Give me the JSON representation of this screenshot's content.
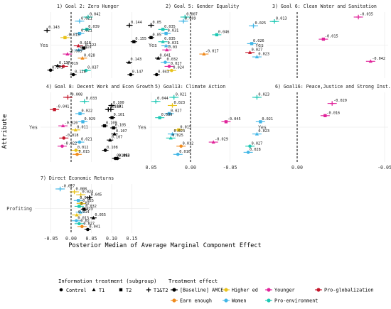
{
  "figure": {
    "ylabel": "Attribute",
    "xlabel": "Posterior Median of Average Marginal Component Effect"
  },
  "chart_data": {
    "type": "scatter",
    "xlim": [
      -0.07,
      0.165
    ],
    "x_ticks": [
      -0.05,
      0.0,
      0.05,
      0.1,
      0.15
    ],
    "x_tick_labels": [
      "-0.05",
      "0.00",
      "0.05",
      "0.10",
      "0.15"
    ],
    "reference_line": 0,
    "legends": {
      "shape_title": "Information treatment (subgroup)",
      "shape_items": [
        {
          "label": "Control",
          "shape": "circle"
        },
        {
          "label": "T1",
          "shape": "triangle"
        },
        {
          "label": "T2",
          "shape": "square"
        },
        {
          "label": "T1&T2",
          "shape": "plus"
        }
      ],
      "color_title": "Treatment effect",
      "color_items": [
        {
          "label": "[Baseline] AMCE",
          "color": "#000000"
        },
        {
          "label": "Higher ed",
          "color": "#e8c21a"
        },
        {
          "label": "Younger",
          "color": "#e0249a"
        },
        {
          "label": "Pro-globalization",
          "color": "#c4162a"
        },
        {
          "label": "Earn enough",
          "color": "#f08a1c"
        },
        {
          "label": "Women",
          "color": "#41b6e6"
        },
        {
          "label": "Pro-environment",
          "color": "#1ec8b4"
        }
      ]
    },
    "panels": [
      {
        "title": "1) Goal 2: Zero Hunger",
        "y_label": "Yes",
        "points": [
          {
            "v": 0.042,
            "label": "0.042",
            "color": "#1ec8b4",
            "shape": "plus"
          },
          {
            "v": 0.021,
            "label": "0.021",
            "color": "#41b6e6",
            "shape": "plus"
          },
          {
            "v": 0.144,
            "label": "0.144",
            "color": "#000000",
            "shape": "plus"
          },
          {
            "v": 0.039,
            "label": "0.039",
            "color": "#1ec8b4",
            "shape": "square"
          },
          {
            "v": 0.021,
            "label": "0.021",
            "color": "#41b6e6",
            "shape": "square"
          },
          {
            "v": -0.015,
            "label": "-0.015",
            "color": "#e8c21a",
            "shape": "square"
          },
          {
            "v": 0.155,
            "label": "0.155",
            "color": "#000000",
            "shape": "square"
          },
          {
            "v": 0.018,
            "label": "0.018",
            "color": "#c4162a",
            "shape": "triangle"
          },
          {
            "v": 0.019,
            "label": "0.019",
            "color": "#41b6e6",
            "shape": "triangle"
          },
          {
            "v": -0.009,
            "label": "-0.009",
            "color": "#e0249a",
            "shape": "triangle"
          },
          {
            "v": 0.028,
            "label": "0.028",
            "color": "#f08a1c",
            "shape": "triangle"
          },
          {
            "v": 0.143,
            "label": "0.143",
            "color": "#000000",
            "shape": "triangle"
          },
          {
            "v": -0.019,
            "label": "-0.019",
            "color": "#c4162a",
            "shape": "circle"
          },
          {
            "v": 0.037,
            "label": "0.037",
            "color": "#1ec8b4",
            "shape": "circle"
          },
          {
            "v": 0.147,
            "label": "0.147",
            "color": "#000000",
            "shape": "circle"
          }
        ]
      },
      {
        "title": "2) Goal 5: Gender Equality",
        "y_label": "Yes",
        "points": [
          {
            "v": 0.007,
            "label": "0.007",
            "color": "#1ec8b4",
            "shape": "plus"
          },
          {
            "v": 0.009,
            "label": "0.009",
            "color": "#41b6e6",
            "shape": "plus"
          },
          {
            "v": 0.05,
            "label": "0.05",
            "color": "#000000",
            "shape": "plus"
          },
          {
            "v": 0.035,
            "label": "0.035",
            "color": "#1ec8b4",
            "shape": "square"
          },
          {
            "v": 0.031,
            "label": "0.031",
            "color": "#41b6e6",
            "shape": "square"
          },
          {
            "v": 0.05,
            "label": "0.05",
            "color": "#000000",
            "shape": "square"
          },
          {
            "v": 0.035,
            "label": "0.035",
            "color": "#1ec8b4",
            "shape": "triangle"
          },
          {
            "v": 0.031,
            "label": "0.031",
            "color": "#41b6e6",
            "shape": "triangle"
          },
          {
            "v": 0.03,
            "label": "0.03",
            "color": "#e0249a",
            "shape": "triangle"
          },
          {
            "v": -0.017,
            "label": "-0.017",
            "color": "#f08a1c",
            "shape": "triangle"
          },
          {
            "v": 0.041,
            "label": "0.041",
            "color": "#000000",
            "shape": "triangle"
          },
          {
            "v": 0.032,
            "label": "0.032",
            "color": "#41b6e6",
            "shape": "circle"
          },
          {
            "v": 0.027,
            "label": "0.027",
            "color": "#e0249a",
            "shape": "circle"
          },
          {
            "v": 0.024,
            "label": "0.024",
            "color": "#e8c21a",
            "shape": "circle"
          },
          {
            "v": 0.043,
            "label": "0.043",
            "color": "#000000",
            "shape": "circle"
          }
        ]
      },
      {
        "title": "3) Goal 6: Clean Water and Sanitation",
        "y_label": "Yes",
        "points": [
          {
            "v": -0.035,
            "label": "-0.035",
            "color": "#e0249a",
            "shape": "plus"
          },
          {
            "v": 0.013,
            "label": "0.013",
            "color": "#1ec8b4",
            "shape": "plus"
          },
          {
            "v": 0.025,
            "label": "0.025",
            "color": "#41b6e6",
            "shape": "plus"
          },
          {
            "v": 0.143,
            "label": "0.143",
            "color": "#000000",
            "shape": "plus"
          },
          {
            "v": 0.046,
            "label": "0.046",
            "color": "#1ec8b4",
            "shape": "square"
          },
          {
            "v": -0.015,
            "label": "-0.015",
            "color": "#e0249a",
            "shape": "square"
          },
          {
            "v": 0.026,
            "label": "0.026",
            "color": "#41b6e6",
            "shape": "square"
          },
          {
            "v": 0.122,
            "label": "0.122",
            "color": "#000000",
            "shape": "square"
          },
          {
            "v": 0.027,
            "label": "0.027",
            "color": "#c4162a",
            "shape": "triangle"
          },
          {
            "v": 0.023,
            "label": "0.023",
            "color": "#41b6e6",
            "shape": "triangle"
          },
          {
            "v": -0.042,
            "label": "-0.042",
            "color": "#e0249a",
            "shape": "triangle"
          },
          {
            "v": 0.137,
            "label": "0.137",
            "color": "#000000",
            "shape": "triangle"
          },
          {
            "v": 0.141,
            "label": "0.141",
            "color": "#000000",
            "shape": "circle"
          },
          {
            "v": 0.128,
            "label": "0.128",
            "color": "#000000",
            "shape": "circle"
          }
        ]
      },
      {
        "title": "4) Goal 8: Decent Work and Econ Growth",
        "y_label": "Yes",
        "points": [
          {
            "v": -0.008,
            "label": "-0.008",
            "color": "#c4162a",
            "shape": "plus"
          },
          {
            "v": 0.033,
            "label": "0.033",
            "color": "#1ec8b4",
            "shape": "plus"
          },
          {
            "v": 0.1,
            "label": "0.100",
            "color": "#000000",
            "shape": "plus"
          },
          {
            "v": -0.041,
            "label": "-0.041",
            "color": "#c4162a",
            "shape": "square"
          },
          {
            "v": 0.022,
            "label": "0.022",
            "color": "#41b6e6",
            "shape": "square"
          },
          {
            "v": 0.101,
            "label": "0.101",
            "color": "#000000",
            "shape": "square"
          },
          {
            "v": 0.029,
            "label": "0.029",
            "color": "#41b6e6",
            "shape": "square"
          },
          {
            "v": -0.02,
            "label": "-0.020",
            "color": "#e0249a",
            "shape": "triangle"
          },
          {
            "v": 0.011,
            "label": "0.011",
            "color": "#e8c21a",
            "shape": "triangle"
          },
          {
            "v": 0.107,
            "label": "0.107",
            "color": "#000000",
            "shape": "triangle"
          },
          {
            "v": -0.018,
            "label": "-0.018",
            "color": "#c4162a",
            "shape": "circle"
          },
          {
            "v": 0.021,
            "label": "0.021",
            "color": "#41b6e6",
            "shape": "circle"
          },
          {
            "v": -0.022,
            "label": "-0.022",
            "color": "#e0249a",
            "shape": "circle"
          },
          {
            "v": 0.012,
            "label": "0.012",
            "color": "#e8c21a",
            "shape": "circle"
          },
          {
            "v": 0.015,
            "label": "0.015",
            "color": "#f08a1c",
            "shape": "circle"
          },
          {
            "v": 0.114,
            "label": "0.114",
            "color": "#000000",
            "shape": "circle"
          }
        ]
      },
      {
        "title": "5) Goal13: Climate Action",
        "y_label": "Yes",
        "points": [
          {
            "v": 0.021,
            "label": "0.021",
            "color": "#1ec8b4",
            "shape": "plus"
          },
          {
            "v": 0.044,
            "label": "0.044",
            "color": "#1ec8b4",
            "shape": "plus"
          },
          {
            "v": 0.023,
            "label": "0.023",
            "color": "#e8c21a",
            "shape": "plus"
          },
          {
            "v": 0.101,
            "label": "0.101",
            "color": "#000000",
            "shape": "plus"
          },
          {
            "v": 0.027,
            "label": "0.027",
            "color": "#41b6e6",
            "shape": "square"
          },
          {
            "v": 0.039,
            "label": "0.039",
            "color": "#1ec8b4",
            "shape": "square"
          },
          {
            "v": -0.045,
            "label": "-0.045",
            "color": "#e0249a",
            "shape": "square"
          },
          {
            "v": 0.109,
            "label": "0.109",
            "color": "#000000",
            "shape": "square"
          },
          {
            "v": 0.015,
            "label": "0.015",
            "color": "#e8c21a",
            "shape": "square"
          },
          {
            "v": 0.023,
            "label": "0.023",
            "color": "#41b6e6",
            "shape": "triangle"
          },
          {
            "v": 0.025,
            "label": "0.025",
            "color": "#1ec8b4",
            "shape": "triangle"
          },
          {
            "v": -0.029,
            "label": "-0.029",
            "color": "#e0249a",
            "shape": "triangle"
          },
          {
            "v": 0.012,
            "label": "0.012",
            "color": "#f08a1c",
            "shape": "circle"
          },
          {
            "v": 0.108,
            "label": "0.108",
            "color": "#000000",
            "shape": "circle"
          },
          {
            "v": 0.016,
            "label": "0.016",
            "color": "#41b6e6",
            "shape": "circle"
          },
          {
            "v": 0.093,
            "label": "0.093",
            "color": "#000000",
            "shape": "circle"
          }
        ]
      },
      {
        "title": "6) Goal16: Peace,Justice and Strong Inst.",
        "y_label": "Yes",
        "points": [
          {
            "v": 0.023,
            "label": "0.023",
            "color": "#1ec8b4",
            "shape": "plus"
          },
          {
            "v": -0.02,
            "label": "-0.020",
            "color": "#e0249a",
            "shape": "plus"
          },
          {
            "v": 0.108,
            "label": "0.108",
            "color": "#000000",
            "shape": "plus"
          },
          {
            "v": -0.016,
            "label": "-0.016",
            "color": "#e0249a",
            "shape": "square"
          },
          {
            "v": 0.021,
            "label": "0.021",
            "color": "#41b6e6",
            "shape": "square"
          },
          {
            "v": 0.105,
            "label": "0.105",
            "color": "#000000",
            "shape": "square"
          },
          {
            "v": 0.023,
            "label": "0.023",
            "color": "#41b6e6",
            "shape": "triangle"
          },
          {
            "v": 0.107,
            "label": "0.107",
            "color": "#000000",
            "shape": "triangle"
          },
          {
            "v": 0.027,
            "label": "0.027",
            "color": "#1ec8b4",
            "shape": "circle"
          },
          {
            "v": 0.028,
            "label": "0.028",
            "color": "#41b6e6",
            "shape": "circle"
          },
          {
            "v": 0.104,
            "label": "0.104",
            "color": "#000000",
            "shape": "circle"
          }
        ]
      },
      {
        "title": "7) Direct Economic Returns",
        "y_label": "Profiting",
        "points": [
          {
            "v": -0.027,
            "label": "-0.027",
            "color": "#41b6e6",
            "shape": "plus"
          },
          {
            "v": 0.008,
            "label": "0.008",
            "color": "#e8c21a",
            "shape": "plus"
          },
          {
            "v": 0.024,
            "label": "0.024",
            "color": "#e8c21a",
            "shape": "plus"
          },
          {
            "v": 0.045,
            "label": "0.045",
            "color": "#000000",
            "shape": "plus"
          },
          {
            "v": 0.018,
            "label": "0.018",
            "color": "#41b6e6",
            "shape": "square"
          },
          {
            "v": 0.025,
            "label": "0.025",
            "color": "#e8c21a",
            "shape": "square"
          },
          {
            "v": 0.02,
            "label": "0.02",
            "color": "#1ec8b4",
            "shape": "square"
          },
          {
            "v": 0.032,
            "label": "0.032",
            "color": "#000000",
            "shape": "square"
          },
          {
            "v": 0.023,
            "label": "0.023",
            "color": "#41b6e6",
            "shape": "triangle"
          },
          {
            "v": 0.014,
            "label": "0.014",
            "color": "#e8c21a",
            "shape": "triangle"
          },
          {
            "v": 0.055,
            "label": "0.055",
            "color": "#000000",
            "shape": "triangle"
          },
          {
            "v": 0.013,
            "label": "0.013",
            "color": "#41b6e6",
            "shape": "circle"
          },
          {
            "v": 0.02,
            "label": "0.02",
            "color": "#1ec8b4",
            "shape": "circle"
          },
          {
            "v": 0.027,
            "label": "0.027",
            "color": "#f08a1c",
            "shape": "circle"
          },
          {
            "v": 0.041,
            "label": "0.041",
            "color": "#000000",
            "shape": "circle"
          }
        ]
      }
    ]
  }
}
